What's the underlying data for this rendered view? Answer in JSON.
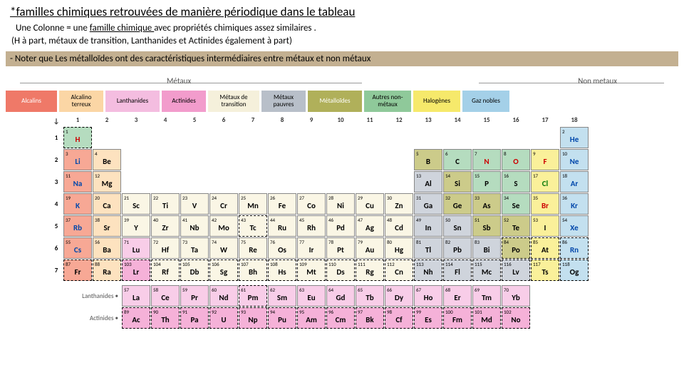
{
  "header": {
    "title": "*familles chimiques retrouvées de manière périodique dans le tableau",
    "sub1_a": "Une Colonne = une ",
    "sub1_u": "famille chimique ",
    "sub1_b": " avec propriétés chimiques assez  similaires .",
    "sub2": "(H à part, métaux de transition, Lanthanides et Actinides également à part)",
    "note": "- Noter que Les métalloïdes ont des caractéristiques intermédiaires entre métaux et non métaux"
  },
  "top_labels": {
    "metaux": "Métaux",
    "nonmetaux": "Non metaux"
  },
  "legend": [
    {
      "t": "Alcalins",
      "bg": "#ef7968",
      "w": 72,
      "c": "#fff"
    },
    {
      "t": "Alcalino terreux",
      "bg": "#fbd6a5",
      "w": 62
    },
    {
      "t": "Lanthanides",
      "bg": "#f4bde0",
      "w": 76
    },
    {
      "t": "Actinides",
      "bg": "#f29ccc",
      "w": 62
    },
    {
      "t": "Métaux de transition",
      "bg": "#f5f0db",
      "w": 72
    },
    {
      "t": "Métaux pauvres",
      "bg": "#b8bfc9",
      "w": 62
    },
    {
      "t": "Métalloïdes",
      "bg": "#b0b05a",
      "w": 76,
      "c": "#fff"
    },
    {
      "t": "Autres non-métaux",
      "bg": "#8fc99a",
      "w": 66
    },
    {
      "t": "Halogènes",
      "bg": "#f6e96b",
      "w": 66
    },
    {
      "t": "Gaz nobles",
      "bg": "#a4d0e8",
      "w": 66
    }
  ],
  "colors": {
    "alk": "#f7a895",
    "alke": "#fde2bf",
    "lan": "#f8cde8",
    "act": "#f5b1d8",
    "trans": "#faf6e5",
    "poor": "#cfd4dc",
    "mloid": "#cccb8a",
    "nm": "#b5dcbf",
    "hal": "#faf09a",
    "noble": "#c3e0ef",
    "txtH": "#c00",
    "txtBlue": "#0047ab",
    "txtGreen": "#0a7a0a",
    "txtBlack": "#000"
  },
  "groups": [
    "1",
    "2",
    "3",
    "4",
    "5",
    "6",
    "7",
    "8",
    "9",
    "10",
    "11",
    "12",
    "13",
    "14",
    "15",
    "16",
    "17",
    "18"
  ],
  "elements": [
    [
      {
        "z": 1,
        "s": "H",
        "f": "nm",
        "tc": "txtH",
        "d": 1
      },
      null,
      null,
      null,
      null,
      null,
      null,
      null,
      null,
      null,
      null,
      null,
      null,
      null,
      null,
      null,
      null,
      {
        "z": 2,
        "s": "He",
        "f": "noble",
        "tc": "txtBlue"
      }
    ],
    [
      {
        "z": 3,
        "s": "Li",
        "f": "alk",
        "tc": "txtBlue"
      },
      {
        "z": 4,
        "s": "Be",
        "f": "alke"
      },
      null,
      null,
      null,
      null,
      null,
      null,
      null,
      null,
      null,
      null,
      {
        "z": 5,
        "s": "B",
        "f": "mloid"
      },
      {
        "z": 6,
        "s": "C",
        "f": "nm"
      },
      {
        "z": 7,
        "s": "N",
        "f": "nm",
        "tc": "txtH"
      },
      {
        "z": 8,
        "s": "O",
        "f": "nm",
        "tc": "txtH"
      },
      {
        "z": 9,
        "s": "F",
        "f": "hal",
        "tc": "txtH"
      },
      {
        "z": 10,
        "s": "Ne",
        "f": "noble",
        "tc": "txtBlue"
      }
    ],
    [
      {
        "z": 11,
        "s": "Na",
        "f": "alk",
        "tc": "txtBlue"
      },
      {
        "z": 12,
        "s": "Mg",
        "f": "alke"
      },
      null,
      null,
      null,
      null,
      null,
      null,
      null,
      null,
      null,
      null,
      {
        "z": 13,
        "s": "Al",
        "f": "poor"
      },
      {
        "z": 14,
        "s": "Si",
        "f": "mloid"
      },
      {
        "z": 15,
        "s": "P",
        "f": "nm"
      },
      {
        "z": 16,
        "s": "S",
        "f": "nm"
      },
      {
        "z": 17,
        "s": "Cl",
        "f": "hal",
        "tc": "txtGreen"
      },
      {
        "z": 18,
        "s": "Ar",
        "f": "noble",
        "tc": "txtBlue"
      }
    ],
    [
      {
        "z": 19,
        "s": "K",
        "f": "alk",
        "tc": "txtBlue"
      },
      {
        "z": 20,
        "s": "Ca",
        "f": "alke"
      },
      {
        "z": 21,
        "s": "Sc",
        "f": "trans"
      },
      {
        "z": 22,
        "s": "Ti",
        "f": "trans"
      },
      {
        "z": 23,
        "s": "V",
        "f": "trans"
      },
      {
        "z": 24,
        "s": "Cr",
        "f": "trans"
      },
      {
        "z": 25,
        "s": "Mn",
        "f": "trans"
      },
      {
        "z": 26,
        "s": "Fe",
        "f": "trans"
      },
      {
        "z": 27,
        "s": "Co",
        "f": "trans"
      },
      {
        "z": 28,
        "s": "Ni",
        "f": "trans"
      },
      {
        "z": 29,
        "s": "Cu",
        "f": "trans"
      },
      {
        "z": 30,
        "s": "Zn",
        "f": "trans"
      },
      {
        "z": 31,
        "s": "Ga",
        "f": "poor"
      },
      {
        "z": 32,
        "s": "Ge",
        "f": "mloid"
      },
      {
        "z": 33,
        "s": "As",
        "f": "mloid"
      },
      {
        "z": 34,
        "s": "Se",
        "f": "nm"
      },
      {
        "z": 35,
        "s": "Br",
        "f": "hal",
        "tc": "txtH"
      },
      {
        "z": 36,
        "s": "Kr",
        "f": "noble",
        "tc": "txtBlue"
      }
    ],
    [
      {
        "z": 37,
        "s": "Rb",
        "f": "alk",
        "tc": "txtBlue"
      },
      {
        "z": 38,
        "s": "Sr",
        "f": "alke"
      },
      {
        "z": 39,
        "s": "Y",
        "f": "trans"
      },
      {
        "z": 40,
        "s": "Zr",
        "f": "trans"
      },
      {
        "z": 41,
        "s": "Nb",
        "f": "trans"
      },
      {
        "z": 42,
        "s": "Mo",
        "f": "trans"
      },
      {
        "z": 43,
        "s": "Tc",
        "f": "trans",
        "d": 1
      },
      {
        "z": 44,
        "s": "Ru",
        "f": "trans"
      },
      {
        "z": 45,
        "s": "Rh",
        "f": "trans"
      },
      {
        "z": 46,
        "s": "Pd",
        "f": "trans"
      },
      {
        "z": 47,
        "s": "Ag",
        "f": "trans"
      },
      {
        "z": 48,
        "s": "Cd",
        "f": "trans"
      },
      {
        "z": 49,
        "s": "In",
        "f": "poor"
      },
      {
        "z": 50,
        "s": "Sn",
        "f": "poor"
      },
      {
        "z": 51,
        "s": "Sb",
        "f": "mloid"
      },
      {
        "z": 52,
        "s": "Te",
        "f": "mloid"
      },
      {
        "z": 53,
        "s": "I",
        "f": "hal"
      },
      {
        "z": 54,
        "s": "Xe",
        "f": "noble",
        "tc": "txtBlue"
      }
    ],
    [
      {
        "z": 55,
        "s": "Cs",
        "f": "alk",
        "tc": "txtBlue"
      },
      {
        "z": 56,
        "s": "Ba",
        "f": "alke"
      },
      {
        "z": 71,
        "s": "Lu",
        "f": "lan"
      },
      {
        "z": 72,
        "s": "Hf",
        "f": "trans"
      },
      {
        "z": 73,
        "s": "Ta",
        "f": "trans"
      },
      {
        "z": 74,
        "s": "W",
        "f": "trans"
      },
      {
        "z": 75,
        "s": "Re",
        "f": "trans"
      },
      {
        "z": 76,
        "s": "Os",
        "f": "trans"
      },
      {
        "z": 77,
        "s": "Ir",
        "f": "trans"
      },
      {
        "z": 78,
        "s": "Pt",
        "f": "trans"
      },
      {
        "z": 79,
        "s": "Au",
        "f": "trans"
      },
      {
        "z": 80,
        "s": "Hg",
        "f": "trans"
      },
      {
        "z": 81,
        "s": "Tl",
        "f": "poor"
      },
      {
        "z": 82,
        "s": "Pb",
        "f": "poor"
      },
      {
        "z": 83,
        "s": "Bi",
        "f": "poor"
      },
      {
        "z": 84,
        "s": "Po",
        "f": "mloid",
        "d": 1
      },
      {
        "z": 85,
        "s": "At",
        "f": "hal",
        "d": 1
      },
      {
        "z": 86,
        "s": "Rn",
        "f": "noble",
        "tc": "txtBlue",
        "d": 1
      }
    ],
    [
      {
        "z": 87,
        "s": "Fr",
        "f": "alk",
        "d": 1
      },
      {
        "z": 88,
        "s": "Ra",
        "f": "alke",
        "d": 1
      },
      {
        "z": 103,
        "s": "Lr",
        "f": "act",
        "d": 1
      },
      {
        "z": 104,
        "s": "Rf",
        "f": "trans",
        "d": 1
      },
      {
        "z": 105,
        "s": "Db",
        "f": "trans",
        "d": 1
      },
      {
        "z": 106,
        "s": "Sg",
        "f": "trans",
        "d": 1
      },
      {
        "z": 107,
        "s": "Bh",
        "f": "trans",
        "d": 1
      },
      {
        "z": 108,
        "s": "Hs",
        "f": "trans",
        "d": 1
      },
      {
        "z": 109,
        "s": "Mt",
        "f": "trans",
        "d": 1
      },
      {
        "z": 110,
        "s": "Ds",
        "f": "trans",
        "d": 1
      },
      {
        "z": 111,
        "s": "Rg",
        "f": "trans",
        "d": 1
      },
      {
        "z": 112,
        "s": "Cn",
        "f": "trans",
        "d": 1
      },
      {
        "z": 113,
        "s": "Nh",
        "f": "poor",
        "d": 1
      },
      {
        "z": 114,
        "s": "Fl",
        "f": "poor",
        "d": 1
      },
      {
        "z": 115,
        "s": "Mc",
        "f": "poor",
        "d": 1
      },
      {
        "z": 116,
        "s": "Lv",
        "f": "poor",
        "d": 1
      },
      {
        "z": 117,
        "s": "Ts",
        "f": "hal",
        "d": 1
      },
      {
        "z": 118,
        "s": "Og",
        "f": "noble",
        "d": 1
      }
    ]
  ],
  "lanthanides": {
    "label": "Lanthanides",
    "row": [
      {
        "z": 57,
        "s": "La",
        "f": "lan"
      },
      {
        "z": 58,
        "s": "Ce",
        "f": "lan"
      },
      {
        "z": 59,
        "s": "Pr",
        "f": "lan"
      },
      {
        "z": 60,
        "s": "Nd",
        "f": "lan"
      },
      {
        "z": 61,
        "s": "Pm",
        "f": "lan",
        "d": 1
      },
      {
        "z": 62,
        "s": "Sm",
        "f": "lan"
      },
      {
        "z": 63,
        "s": "Eu",
        "f": "lan"
      },
      {
        "z": 64,
        "s": "Gd",
        "f": "lan"
      },
      {
        "z": 65,
        "s": "Tb",
        "f": "lan"
      },
      {
        "z": 66,
        "s": "Dy",
        "f": "lan"
      },
      {
        "z": 67,
        "s": "Ho",
        "f": "lan"
      },
      {
        "z": 68,
        "s": "Er",
        "f": "lan"
      },
      {
        "z": 69,
        "s": "Tm",
        "f": "lan"
      },
      {
        "z": 70,
        "s": "Yb",
        "f": "lan"
      }
    ]
  },
  "actinides": {
    "label": "Actinides",
    "row": [
      {
        "z": 89,
        "s": "Ac",
        "f": "act",
        "d": 1
      },
      {
        "z": 90,
        "s": "Th",
        "f": "act",
        "d": 1
      },
      {
        "z": 91,
        "s": "Pa",
        "f": "act",
        "d": 1
      },
      {
        "z": 92,
        "s": "U",
        "f": "act",
        "d": 1
      },
      {
        "z": 93,
        "s": "Np",
        "f": "act",
        "d": 1
      },
      {
        "z": 94,
        "s": "Pu",
        "f": "act",
        "d": 1
      },
      {
        "z": 95,
        "s": "Am",
        "f": "act",
        "d": 1
      },
      {
        "z": 96,
        "s": "Cm",
        "f": "act",
        "d": 1
      },
      {
        "z": 97,
        "s": "Bk",
        "f": "act",
        "d": 1
      },
      {
        "z": 98,
        "s": "Cf",
        "f": "act",
        "d": 1
      },
      {
        "z": 99,
        "s": "Es",
        "f": "act",
        "d": 1
      },
      {
        "z": 100,
        "s": "Fm",
        "f": "act",
        "d": 1
      },
      {
        "z": 101,
        "s": "Md",
        "f": "act",
        "d": 1
      },
      {
        "z": 102,
        "s": "No",
        "f": "act",
        "d": 1
      }
    ]
  }
}
